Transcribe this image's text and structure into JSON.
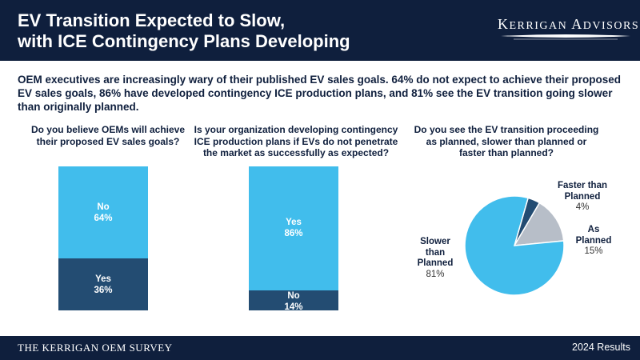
{
  "header": {
    "title_lines": [
      "EV Transition Expected to Slow,",
      "with ICE Contingency Plans Developing"
    ],
    "logo": "Kerrigan Advisors"
  },
  "intro": "OEM executives are increasingly wary of their published EV sales goals. 64% do not expect to achieve their proposed EV sales goals, 86% have developed contingency ICE production plans, and 81% see the EV transition going slower than originally planned.",
  "colors": {
    "navy": "#0f1f3d",
    "light_blue": "#41bdec",
    "dark_blue": "#234c72",
    "gray": "#b7bec8"
  },
  "chart_data": [
    {
      "type": "bar",
      "stacked": true,
      "title_lines": [
        "Do you believe OEMs will achieve",
        "their proposed EV sales goals?"
      ],
      "series": [
        {
          "name": "No",
          "value": 64,
          "label": "64%",
          "color": "#41bdec"
        },
        {
          "name": "Yes",
          "value": 36,
          "label": "36%",
          "color": "#234c72"
        }
      ]
    },
    {
      "type": "bar",
      "stacked": true,
      "title_lines": [
        "Is your organization developing contingency",
        "ICE production plans if EVs do not penetrate",
        "the market as successfully as expected?"
      ],
      "series": [
        {
          "name": "Yes",
          "value": 86,
          "label": "86%",
          "color": "#41bdec"
        },
        {
          "name": "No",
          "value": 14,
          "label": "14%",
          "color": "#234c72"
        }
      ]
    },
    {
      "type": "pie",
      "title_lines": [
        "Do you see the EV transition proceeding",
        "as planned, slower than planned or",
        "faster than planned?"
      ],
      "slices": [
        {
          "name_lines": [
            "Faster than",
            "Planned"
          ],
          "value": 4,
          "label": "4%",
          "color": "#234c72"
        },
        {
          "name_lines": [
            "As",
            "Planned"
          ],
          "value": 15,
          "label": "15%",
          "color": "#b7bec8"
        },
        {
          "name_lines": [
            "Slower",
            "than",
            "Planned"
          ],
          "value": 81,
          "label": "81%",
          "color": "#41bdec"
        }
      ]
    }
  ],
  "footer": {
    "survey": "THE KERRIGAN OEM SURVEY",
    "results": "2024 Results"
  }
}
